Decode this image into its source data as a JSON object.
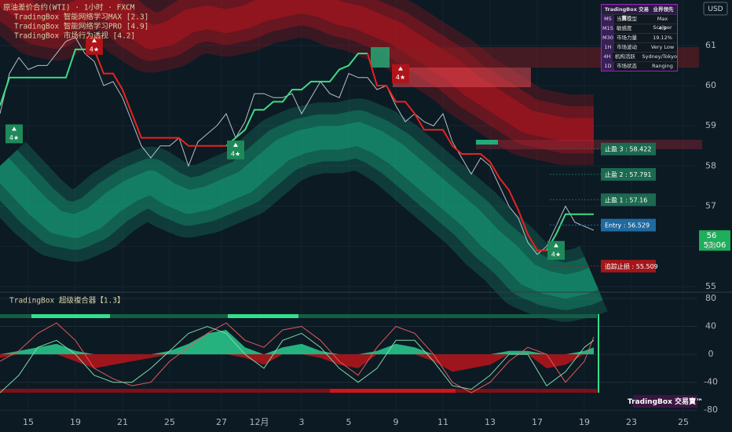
{
  "chart_data": {
    "type": "line",
    "title": "原油差价合约(WTI) · 1小时 · FXCM",
    "indicators": [
      "TradingBox  智能网络学习MAX [2.3]",
      "TradingBox  智能网络学习PRO [4.9]",
      "TradingBox  市场行为透视 [4.2]"
    ],
    "currency": "USD",
    "xlim": [
      0,
      148
    ],
    "xticks": [
      {
        "value": 6,
        "label": "15"
      },
      {
        "value": 16,
        "label": "19"
      },
      {
        "value": 26,
        "label": "21"
      },
      {
        "value": 36,
        "label": "25"
      },
      {
        "value": 47,
        "label": "27"
      },
      {
        "value": 55,
        "label": "12月"
      },
      {
        "value": 64,
        "label": "3"
      },
      {
        "value": 74,
        "label": "5"
      },
      {
        "value": 84,
        "label": "9"
      },
      {
        "value": 94,
        "label": "11"
      },
      {
        "value": 104,
        "label": "13"
      },
      {
        "value": 114,
        "label": "17"
      },
      {
        "value": 124,
        "label": "19"
      },
      {
        "value": 134,
        "label": "23"
      },
      {
        "value": 145,
        "label": "25"
      }
    ],
    "ylim": [
      54.86,
      62.13
    ],
    "yticks": [
      55,
      56,
      57,
      58,
      59,
      60,
      61
    ],
    "x": [
      0,
      2,
      4,
      6,
      8,
      10,
      12,
      14,
      16,
      18,
      20,
      22,
      24,
      26,
      28,
      30,
      32,
      34,
      36,
      38,
      40,
      42,
      44,
      46,
      48,
      50,
      52,
      54,
      56,
      58,
      60,
      62,
      64,
      66,
      68,
      70,
      72,
      74,
      76,
      78,
      80,
      82,
      84,
      86,
      88,
      90,
      92,
      94,
      96,
      98,
      100,
      102,
      104,
      106,
      108,
      110,
      112,
      114,
      116,
      118,
      120,
      122,
      124,
      126
    ],
    "series": [
      {
        "color": "#b8c0c8",
        "values": [
          59.3,
          60.3,
          60.7,
          60.4,
          60.5,
          60.5,
          60.8,
          61.1,
          61.2,
          60.8,
          60.6,
          60.0,
          60.1,
          59.7,
          59.1,
          58.5,
          58.2,
          58.5,
          58.5,
          58.7,
          58.0,
          58.6,
          58.8,
          59.0,
          59.3,
          58.7,
          59.1,
          59.8,
          59.8,
          59.7,
          59.7,
          59.8,
          59.3,
          59.7,
          60.1,
          59.8,
          59.7,
          60.3,
          60.2,
          60.2,
          59.9,
          60.0,
          59.5,
          59.1,
          59.3,
          59.1,
          59.0,
          59.3,
          58.6,
          58.2,
          57.8,
          58.2,
          58.0,
          57.5,
          57.0,
          56.7,
          56.1,
          55.8,
          56.0,
          56.5,
          57.0,
          56.6,
          56.5,
          56.4
        ]
      },
      {
        "color": "#3ddc84",
        "values": [
          59.5,
          60.2,
          60.2,
          60.2,
          60.2,
          60.2,
          60.2,
          60.2,
          60.9,
          60.9,
          60.9,
          null,
          null,
          null,
          null,
          null,
          null,
          null,
          null,
          null,
          null,
          null,
          null,
          null,
          58.5,
          58.7,
          58.9,
          59.4,
          59.4,
          59.6,
          59.6,
          59.9,
          59.9,
          60.1,
          60.1,
          60.1,
          60.4,
          60.5,
          60.8,
          60.8,
          null,
          null,
          null,
          null,
          null,
          null,
          null,
          null,
          null,
          null,
          null,
          null,
          null,
          null,
          null,
          null,
          null,
          null,
          55.9,
          56.3,
          56.8,
          56.8,
          56.8,
          56.8
        ]
      },
      {
        "color": "#e8231f",
        "values": [
          null,
          null,
          null,
          null,
          null,
          null,
          null,
          null,
          null,
          null,
          60.9,
          60.3,
          60.3,
          59.9,
          59.3,
          58.7,
          58.7,
          58.7,
          58.7,
          58.7,
          58.5,
          58.5,
          58.5,
          58.5,
          58.5,
          null,
          null,
          null,
          null,
          null,
          null,
          null,
          null,
          null,
          null,
          null,
          null,
          null,
          null,
          60.8,
          60.0,
          60.0,
          59.6,
          59.6,
          59.3,
          58.9,
          58.9,
          58.9,
          58.5,
          58.3,
          58.3,
          58.3,
          58.1,
          57.7,
          57.4,
          56.9,
          56.3,
          55.9,
          55.9,
          null,
          null,
          null,
          null,
          null
        ]
      }
    ],
    "bands": [
      {
        "color": "#c0141c",
        "x": [
          0,
          4,
          8,
          12,
          16,
          20,
          24,
          28,
          32,
          36,
          40,
          44,
          48,
          52,
          56,
          60,
          64,
          68,
          72,
          76,
          80,
          84,
          88,
          92,
          96,
          100,
          104,
          108,
          112,
          116,
          120,
          124,
          126
        ],
        "values": [
          62.3,
          62.0,
          61.6,
          61.5,
          61.8,
          62.0,
          61.9,
          61.5,
          61.2,
          61.3,
          61.6,
          61.7,
          61.6,
          61.7,
          61.9,
          62.0,
          62.1,
          62.0,
          61.8,
          61.7,
          61.5,
          61.3,
          61.0,
          60.7,
          60.4,
          60.0,
          59.7,
          59.4,
          59.1,
          59.0,
          58.9,
          58.9,
          58.9
        ]
      },
      {
        "color": "#16a37a",
        "x": [
          0,
          4,
          8,
          12,
          16,
          20,
          24,
          28,
          32,
          36,
          40,
          44,
          48,
          52,
          56,
          60,
          64,
          68,
          72,
          76,
          80,
          84,
          88,
          92,
          96,
          100,
          104,
          108,
          112,
          116,
          120,
          124,
          126
        ],
        "values": [
          58.0,
          57.5,
          57.0,
          56.6,
          56.5,
          56.7,
          57.1,
          57.4,
          57.6,
          57.3,
          57.1,
          57.2,
          57.4,
          57.6,
          58.0,
          58.4,
          58.6,
          58.7,
          58.7,
          58.8,
          58.6,
          58.3,
          57.9,
          57.5,
          57.1,
          56.7,
          56.2,
          55.8,
          55.3,
          55.1,
          55.0,
          55.1,
          55.2
        ]
      }
    ],
    "signals": [
      {
        "x": 3,
        "value": 58.8,
        "label": "4★",
        "color": "#1e8a5a"
      },
      {
        "x": 20,
        "value": 61.0,
        "label": "4★",
        "color": "#b01419"
      },
      {
        "x": 50,
        "value": 58.4,
        "label": "4★",
        "color": "#1e8a5a"
      },
      {
        "x": 85,
        "value": 60.3,
        "label": "4★",
        "color": "#b01419"
      },
      {
        "x": 118,
        "value": 55.9,
        "label": "4★",
        "color": "#1e8a5a"
      }
    ],
    "levels": [
      {
        "value": 58.422,
        "label": "止盈 3 : 58.422",
        "color": "#1c6a50"
      },
      {
        "value": 57.791,
        "label": "止盈 2 : 57.791",
        "color": "#1c6a50"
      },
      {
        "value": 57.16,
        "label": "止盈 1 : 57.16",
        "color": "#1c6a50"
      },
      {
        "value": 56.529,
        "label": "Entry : 56.529",
        "color": "#1f6aa0"
      },
      {
        "value": 55.509,
        "label": "追踪止损 : 55.509",
        "color": "#a3161a"
      }
    ],
    "last_price": "56",
    "countdown": "53:06",
    "oscillator": {
      "title": "TradingBox   超级複合器【1.3】",
      "ylim": [
        -91,
        89
      ],
      "yticks": [
        80,
        40,
        0,
        -40,
        -80
      ],
      "x": [
        0,
        4,
        8,
        12,
        16,
        20,
        24,
        28,
        32,
        36,
        40,
        44,
        48,
        52,
        56,
        60,
        64,
        68,
        72,
        76,
        80,
        84,
        88,
        92,
        96,
        100,
        104,
        108,
        112,
        116,
        120,
        124,
        126
      ],
      "series": [
        {
          "color": "#e05a5a",
          "values": [
            -10,
            5,
            30,
            45,
            20,
            -20,
            -35,
            -45,
            -40,
            -10,
            10,
            30,
            45,
            20,
            10,
            35,
            40,
            20,
            -10,
            -30,
            10,
            40,
            30,
            0,
            -40,
            -55,
            -40,
            -10,
            10,
            0,
            -40,
            -10,
            25
          ]
        },
        {
          "color": "#7fd8a8",
          "values": [
            -55,
            -30,
            10,
            20,
            0,
            -30,
            -40,
            -40,
            -20,
            5,
            30,
            40,
            30,
            0,
            -20,
            20,
            30,
            10,
            -20,
            -40,
            -20,
            20,
            20,
            -10,
            -45,
            -50,
            -30,
            0,
            0,
            -45,
            -25,
            10,
            20
          ]
        }
      ],
      "momentum": {
        "color": "#2ee59d",
        "values": [
          0,
          5,
          10,
          15,
          5,
          0,
          0,
          0,
          0,
          5,
          15,
          30,
          35,
          10,
          0,
          10,
          15,
          5,
          0,
          0,
          5,
          15,
          10,
          0,
          0,
          0,
          0,
          5,
          5,
          0,
          0,
          5,
          10
        ]
      },
      "momentum_neg": {
        "color": "#d0141a",
        "values": [
          -5,
          0,
          0,
          0,
          -10,
          -20,
          -15,
          -10,
          -5,
          0,
          0,
          0,
          0,
          -5,
          -15,
          0,
          0,
          -5,
          -15,
          -20,
          0,
          0,
          0,
          -10,
          -25,
          -20,
          -15,
          0,
          0,
          -20,
          -15,
          0,
          0
        ]
      }
    },
    "info_table": {
      "header": [
        "TradingBox 交易寶™",
        "业界领先"
      ],
      "rows": [
        [
          "M5",
          "当前模型",
          "Max Scalper"
        ],
        [
          "M15",
          "敏感度",
          "4.9"
        ],
        [
          "M30",
          "市场力量",
          "19.12%"
        ],
        [
          "1H",
          "市场波动",
          "Very Low"
        ],
        [
          "4H",
          "机构活跃",
          "Sydney/Tokyo"
        ],
        [
          "1D",
          "市场状态",
          "Ranging"
        ]
      ]
    },
    "badge": "TradingBox 交易寶™"
  }
}
